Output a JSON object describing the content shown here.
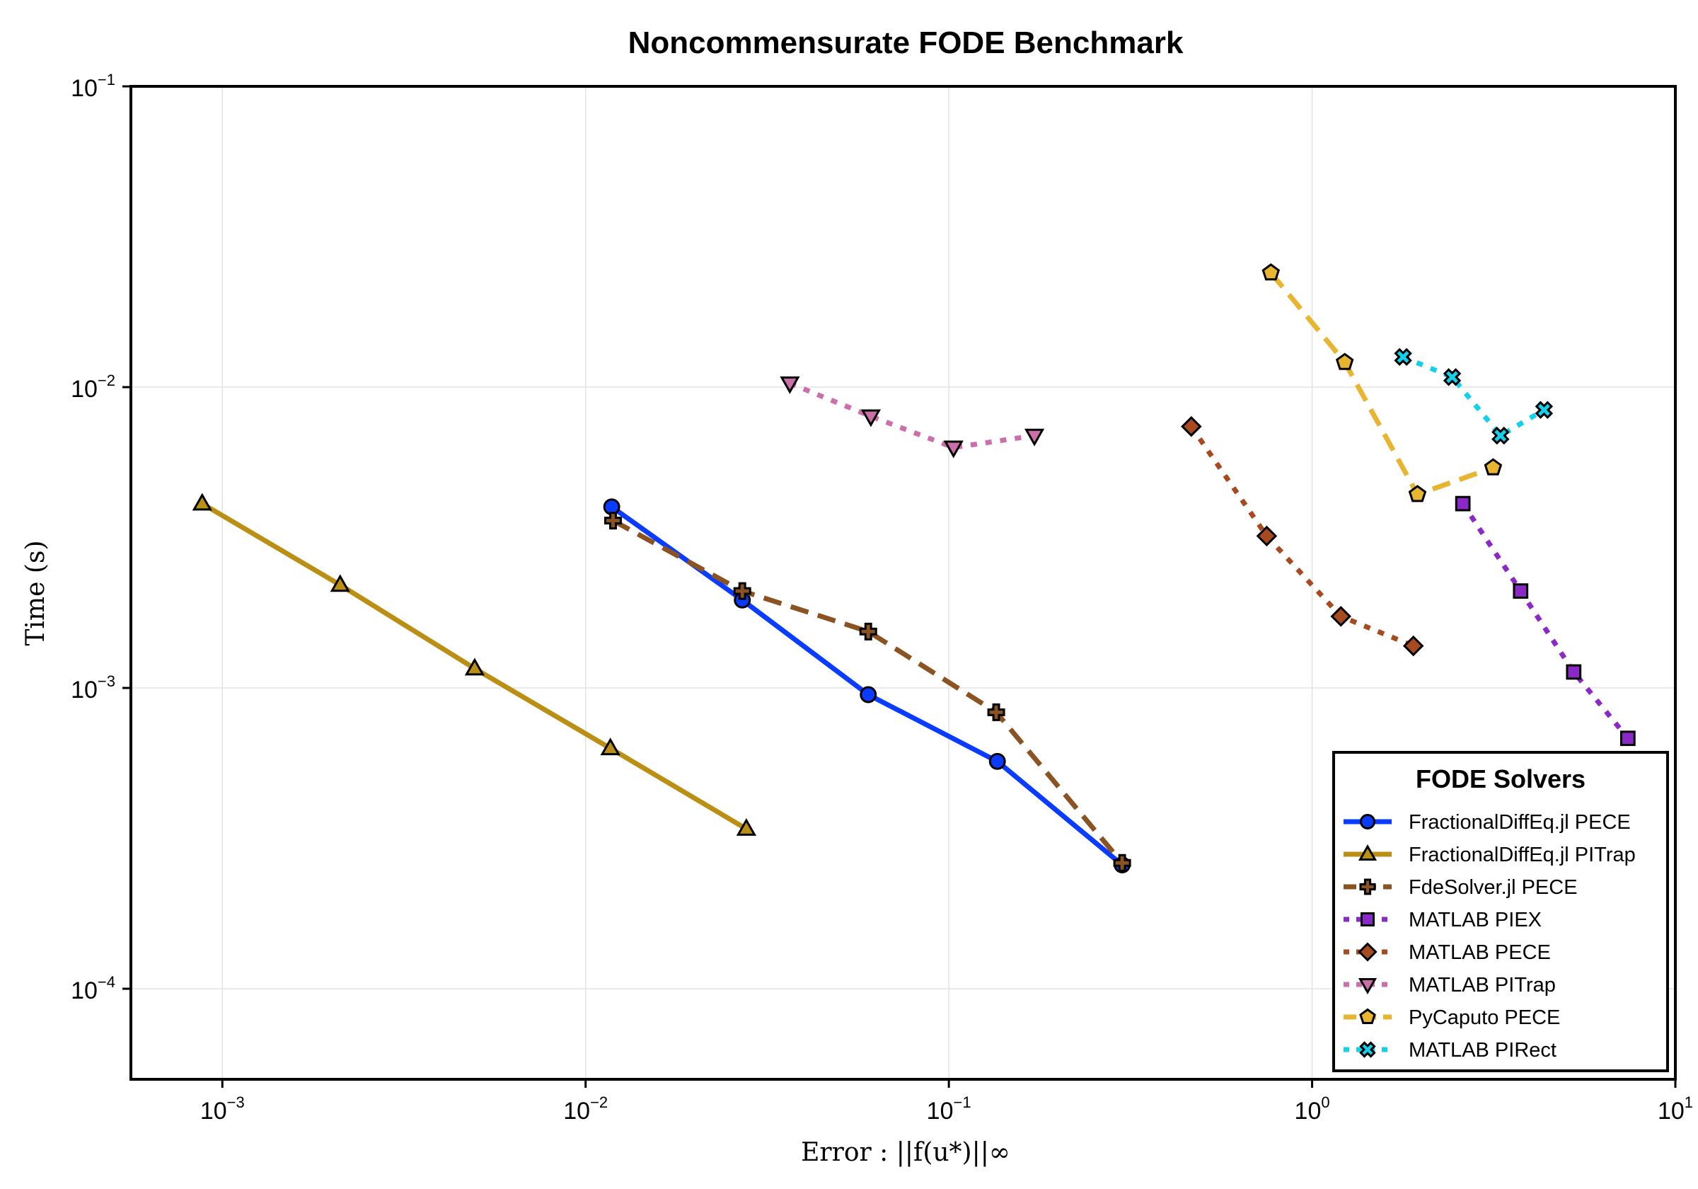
{
  "chart_data": {
    "type": "line",
    "title": "Noncommensurate FODE Benchmark",
    "xlabel": "Error :  ||f(u*)||∞",
    "ylabel": "Time (s)",
    "xscale": "log",
    "yscale": "log",
    "xlim": [
      0.00056,
      10
    ],
    "ylim": [
      5e-05,
      0.1
    ],
    "grid": true,
    "x_ticks": [
      {
        "base": "10",
        "exp": "−3"
      },
      {
        "base": "10",
        "exp": "−2"
      },
      {
        "base": "10",
        "exp": "−1"
      },
      {
        "base": "10",
        "exp": "0"
      },
      {
        "base": "10",
        "exp": "1"
      }
    ],
    "y_ticks": [
      {
        "base": "10",
        "exp": "−4"
      },
      {
        "base": "10",
        "exp": "−3"
      },
      {
        "base": "10",
        "exp": "−2"
      },
      {
        "base": "10",
        "exp": "−1"
      }
    ],
    "legend": {
      "title": "FODE Solvers",
      "position": "bottom-right"
    },
    "series": [
      {
        "name": "FractionalDiffEq.jl PECE",
        "color": "#0a3cff",
        "line": "solid",
        "marker": "circle",
        "x": [
          0.0118,
          0.027,
          0.06,
          0.136,
          0.3
        ],
        "y": [
          0.004,
          0.00196,
          0.00095,
          0.00057,
          0.000258
        ]
      },
      {
        "name": "FractionalDiffEq.jl PITrap",
        "color": "#bb8e14",
        "line": "solid",
        "marker": "triangle-up",
        "x": [
          0.00088,
          0.00211,
          0.00495,
          0.0117,
          0.0277
        ],
        "y": [
          0.0041,
          0.0022,
          0.00116,
          0.00063,
          0.00034
        ]
      },
      {
        "name": "FdeSolver.jl PECE",
        "color": "#8b5322",
        "line": "dashed",
        "marker": "cross",
        "x": [
          0.0119,
          0.027,
          0.06,
          0.135,
          0.3
        ],
        "y": [
          0.0036,
          0.0021,
          0.00154,
          0.00083,
          0.000262
        ]
      },
      {
        "name": "MATLAB PIEX",
        "color": "#8b28c8",
        "line": "dotted",
        "marker": "square",
        "x": [
          2.6,
          3.75,
          5.25,
          7.4
        ],
        "y": [
          0.0041,
          0.0021,
          0.00113,
          0.00068
        ]
      },
      {
        "name": "MATLAB PECE",
        "color": "#a84a1f",
        "line": "dotted",
        "marker": "diamond",
        "x": [
          0.465,
          0.75,
          1.2,
          1.9
        ],
        "y": [
          0.0074,
          0.0032,
          0.00173,
          0.00138
        ]
      },
      {
        "name": "MATLAB PITrap",
        "color": "#cc6eaa",
        "line": "dotted",
        "marker": "triangle-down",
        "x": [
          0.0365,
          0.061,
          0.103,
          0.172
        ],
        "y": [
          0.0103,
          0.008,
          0.0063,
          0.0069
        ]
      },
      {
        "name": "PyCaputo PECE",
        "color": "#e8b530",
        "line": "dashed",
        "marker": "pentagon",
        "x": [
          0.77,
          1.23,
          1.95,
          3.15
        ],
        "y": [
          0.024,
          0.0121,
          0.0044,
          0.0054
        ]
      },
      {
        "name": "MATLAB PIRect",
        "color": "#13d0eb",
        "line": "dotted",
        "marker": "x-cross",
        "x": [
          1.78,
          2.43,
          3.3,
          4.35
        ],
        "y": [
          0.0126,
          0.0108,
          0.0069,
          0.0084
        ]
      }
    ]
  }
}
